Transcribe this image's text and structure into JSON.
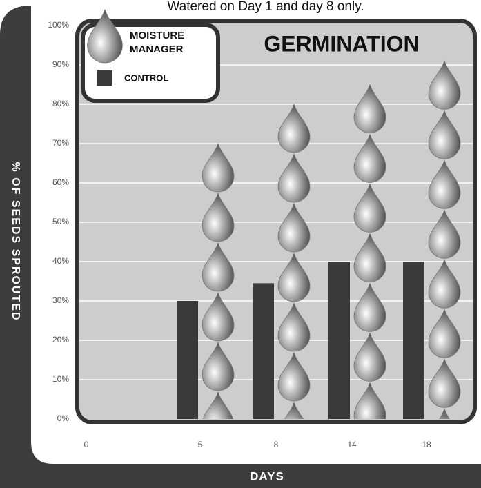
{
  "chart_data": {
    "type": "pictograph-bar",
    "title": "Watered on Day 1 and day 8 only.",
    "subtitle": "GERMINATION",
    "x_label": "DAYS",
    "y_label": "% OF SEEDS SPROUTED",
    "categories": [
      "0",
      "5",
      "8",
      "14",
      "18"
    ],
    "series": [
      {
        "name": "MOISTURE MANAGER",
        "color": "#9a9a9a",
        "values": [
          0,
          70,
          80,
          85,
          91
        ]
      },
      {
        "name": "CONTROL",
        "color": "#3a3a3a",
        "values": [
          0,
          30,
          34.5,
          40,
          40
        ]
      }
    ],
    "ylim": [
      0,
      100
    ],
    "yticks": [
      {
        "value": 0,
        "label": "0%"
      },
      {
        "value": 10,
        "label": "10%"
      },
      {
        "value": 20,
        "label": "20%"
      },
      {
        "value": 30,
        "label": "30%"
      },
      {
        "value": 40,
        "label": "40%"
      },
      {
        "value": 50,
        "label": "50%"
      },
      {
        "value": 60,
        "label": "60%"
      },
      {
        "value": 70,
        "label": "70%"
      },
      {
        "value": 80,
        "label": "80%"
      },
      {
        "value": 90,
        "label": "90%"
      },
      {
        "value": 100,
        "label": "100%"
      }
    ],
    "grid": true
  }
}
